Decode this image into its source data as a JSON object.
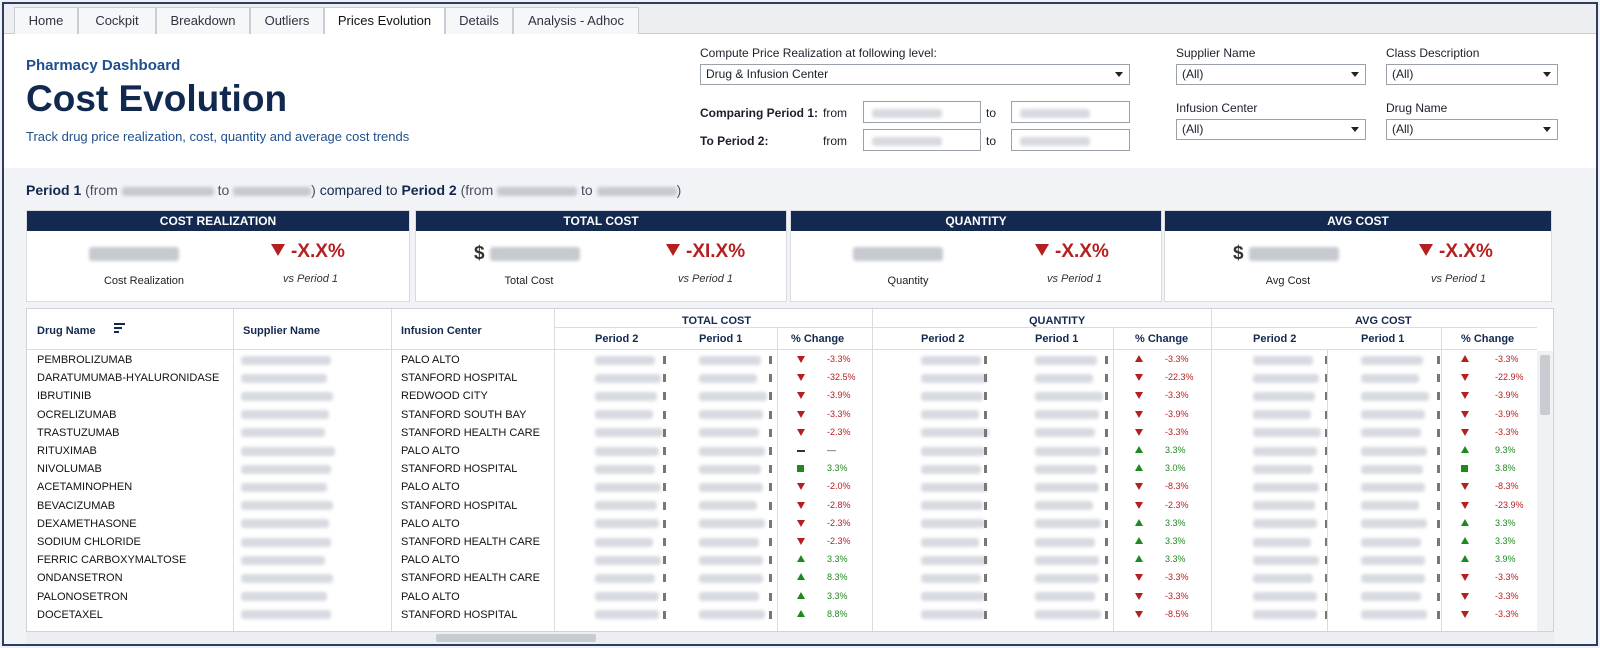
{
  "tabs": [
    {
      "label": "Home",
      "active": false
    },
    {
      "label": "Cockpit",
      "active": false
    },
    {
      "label": "Breakdown",
      "active": false
    },
    {
      "label": "Outliers",
      "active": false
    },
    {
      "label": "Prices Evolution",
      "active": true
    },
    {
      "label": "Details",
      "active": false
    },
    {
      "label": "Analysis - Adhoc",
      "active": false
    }
  ],
  "header": {
    "subtitle": "Pharmacy Dashboard",
    "title": "Cost Evolution",
    "description": "Track drug price realization, cost, quantity and average cost trends"
  },
  "filters": {
    "compute_label": "Compute Price Realization at following level:",
    "compute_value": "Drug & Infusion Center",
    "period1_label": "Comparing Period 1:",
    "period2_label": "To Period 2:",
    "from_label": "from",
    "to_label": "to",
    "supplier_label": "Supplier Name",
    "supplier_value": "(All)",
    "class_label": "Class Description",
    "class_value": "(All)",
    "center_label": "Infusion Center",
    "center_value": "(All)",
    "drug_label": "Drug Name",
    "drug_value": "(All)"
  },
  "period_line": {
    "p1": "Period 1",
    "from1": "(from",
    "to1": "to",
    "compared": "compared to",
    "p2": "Period 2",
    "from2": "(from",
    "to2": "to",
    "close": ")"
  },
  "kpis": [
    {
      "title": "COST REALIZATION",
      "label": "Cost Realization",
      "change": "-X.X%",
      "vs": "vs Period 1",
      "currency": ""
    },
    {
      "title": "TOTAL COST",
      "label": "Total Cost",
      "change": "-XI.X%",
      "vs": "vs Period 1",
      "currency": "$"
    },
    {
      "title": "QUANTITY",
      "label": "Quantity",
      "change": "-X.X%",
      "vs": "vs Period 1",
      "currency": ""
    },
    {
      "title": "AVG COST",
      "label": "Avg Cost",
      "change": "-X.X%",
      "vs": "vs Period 1",
      "currency": "$"
    }
  ],
  "table": {
    "headers": {
      "drug": "Drug Name",
      "supplier": "Supplier Name",
      "center": "Infusion Center",
      "total_cost": "TOTAL COST",
      "quantity": "QUANTITY",
      "avg_cost": "AVG COST",
      "period2": "Period 2",
      "period1": "Period 1",
      "pct": "% Change"
    },
    "rows": [
      {
        "drug": "PEMBROLIZUMAB",
        "center": "PALO ALTO",
        "tc": [
          "down",
          "-3.3%"
        ],
        "q": [
          "up-red",
          "-3.3%"
        ],
        "a": [
          "up-red",
          "-3.3%"
        ]
      },
      {
        "drug": "DARATUMUMAB-HYALURONIDASE",
        "center": "STANFORD HOSPITAL",
        "tc": [
          "down",
          "-32.5%"
        ],
        "q": [
          "down",
          "-22.3%"
        ],
        "a": [
          "down",
          "-22.9%"
        ]
      },
      {
        "drug": "IBRUTINIB",
        "center": "REDWOOD CITY",
        "tc": [
          "down",
          "-3.9%"
        ],
        "q": [
          "down",
          "-3.3%"
        ],
        "a": [
          "down",
          "-3.9%"
        ]
      },
      {
        "drug": "OCRELIZUMAB",
        "center": "STANFORD SOUTH BAY",
        "tc": [
          "down",
          "-3.3%"
        ],
        "q": [
          "down",
          "-3.9%"
        ],
        "a": [
          "down",
          "-3.9%"
        ]
      },
      {
        "drug": "TRASTUZUMAB",
        "center": "STANFORD HEALTH CARE",
        "tc": [
          "down",
          "-2.3%"
        ],
        "q": [
          "down",
          "-3.3%"
        ],
        "a": [
          "down",
          "-3.3%"
        ]
      },
      {
        "drug": "RITUXIMAB",
        "center": "PALO ALTO",
        "tc": [
          "dash",
          "—"
        ],
        "q": [
          "up",
          "3.3%"
        ],
        "a": [
          "up",
          "9.3%"
        ]
      },
      {
        "drug": "NIVOLUMAB",
        "center": "STANFORD HOSPITAL",
        "tc": [
          "sq",
          "3.3%"
        ],
        "q": [
          "up",
          "3.0%"
        ],
        "a": [
          "sq",
          "3.8%"
        ]
      },
      {
        "drug": "ACETAMINOPHEN",
        "center": "PALO ALTO",
        "tc": [
          "down",
          "-2.0%"
        ],
        "q": [
          "down",
          "-8.3%"
        ],
        "a": [
          "down",
          "-8.3%"
        ]
      },
      {
        "drug": "BEVACIZUMAB",
        "center": "STANFORD HOSPITAL",
        "tc": [
          "down",
          "-2.8%"
        ],
        "q": [
          "down",
          "-2.3%"
        ],
        "a": [
          "down",
          "-23.9%"
        ]
      },
      {
        "drug": "DEXAMETHASONE",
        "center": "PALO ALTO",
        "tc": [
          "down",
          "-2.3%"
        ],
        "q": [
          "up",
          "3.3%"
        ],
        "a": [
          "up",
          "3.3%"
        ]
      },
      {
        "drug": "SODIUM CHLORIDE",
        "center": "STANFORD HEALTH CARE",
        "tc": [
          "down",
          "-2.3%"
        ],
        "q": [
          "up",
          "3.3%"
        ],
        "a": [
          "up",
          "3.3%"
        ]
      },
      {
        "drug": "FERRIC CARBOXYMALTOSE",
        "center": "PALO ALTO",
        "tc": [
          "up",
          "3.3%"
        ],
        "q": [
          "up",
          "3.3%"
        ],
        "a": [
          "up",
          "3.9%"
        ]
      },
      {
        "drug": "ONDANSETRON",
        "center": "STANFORD HEALTH CARE",
        "tc": [
          "up",
          "8.3%"
        ],
        "q": [
          "down",
          "-3.3%"
        ],
        "a": [
          "down",
          "-3.3%"
        ]
      },
      {
        "drug": "PALONOSETRON",
        "center": "PALO ALTO",
        "tc": [
          "up",
          "3.3%"
        ],
        "q": [
          "down",
          "-3.3%"
        ],
        "a": [
          "down",
          "-3.3%"
        ]
      },
      {
        "drug": "DOCETAXEL",
        "center": "STANFORD HOSPITAL",
        "tc": [
          "up",
          "8.8%"
        ],
        "q": [
          "down",
          "-8.5%"
        ],
        "a": [
          "down",
          "-3.3%"
        ]
      }
    ]
  },
  "colors": {
    "navy": "#13294f",
    "negative": "#b51f1f",
    "positive": "#1e8a1e"
  }
}
